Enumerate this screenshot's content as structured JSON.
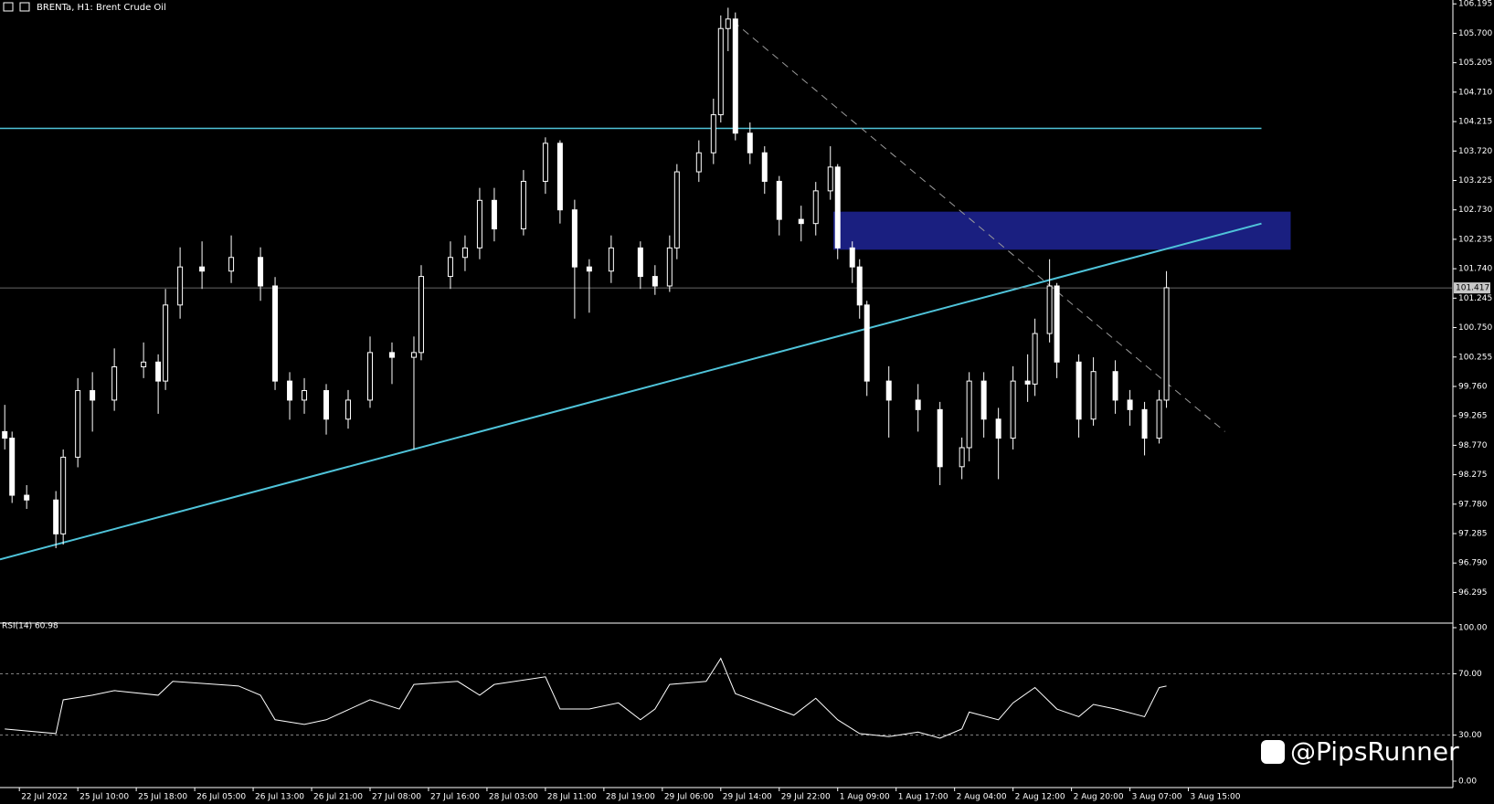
{
  "header": {
    "title": "BRENTa, H1: Brent Crude Oil"
  },
  "watermark": "@PipsRunner",
  "chart_data": [
    {
      "type": "candlestick",
      "color": "#ffffff",
      "background": "#000000",
      "x": [
        0,
        1,
        3,
        7,
        8,
        10,
        12,
        15,
        19,
        21,
        22,
        24,
        27,
        31,
        35,
        37,
        39,
        41,
        44,
        47,
        50,
        53,
        56,
        57,
        61,
        63,
        65,
        67,
        71,
        74,
        76,
        78,
        80,
        83,
        87,
        89,
        91,
        92,
        95,
        97,
        98,
        99,
        100,
        102,
        104,
        106,
        109,
        111,
        113,
        114,
        116,
        117,
        118,
        121,
        125,
        128,
        131,
        132,
        134,
        136,
        138,
        140,
        141,
        143,
        144,
        147,
        149,
        152,
        154,
        156,
        158,
        159
      ],
      "open": [
        99.0,
        98.89,
        97.93,
        97.85,
        97.28,
        98.57,
        99.69,
        99.53,
        100.09,
        100.17,
        99.85,
        101.13,
        101.77,
        101.7,
        101.93,
        101.45,
        99.85,
        99.53,
        99.69,
        99.21,
        99.53,
        100.33,
        100.25,
        100.33,
        101.61,
        101.93,
        102.09,
        102.89,
        102.41,
        103.21,
        103.85,
        102.73,
        101.77,
        101.7,
        102.09,
        101.61,
        101.45,
        102.09,
        103.37,
        103.69,
        104.33,
        105.78,
        105.94,
        104.02,
        103.69,
        103.21,
        102.57,
        102.5,
        103.05,
        103.45,
        102.09,
        101.77,
        101.13,
        99.85,
        99.53,
        99.37,
        98.41,
        98.73,
        99.85,
        99.21,
        98.89,
        99.85,
        99.8,
        100.65,
        101.45,
        100.17,
        99.21,
        100.01,
        99.53,
        99.37,
        98.89,
        99.53
      ],
      "high": [
        99.45,
        99.0,
        98.1,
        98.0,
        98.7,
        99.9,
        100.0,
        100.4,
        100.5,
        100.3,
        101.4,
        102.1,
        102.2,
        102.3,
        102.1,
        101.6,
        100.0,
        99.9,
        99.8,
        99.7,
        100.6,
        100.5,
        100.6,
        101.8,
        102.2,
        102.3,
        103.1,
        103.1,
        103.4,
        103.95,
        103.9,
        102.9,
        101.9,
        102.3,
        102.2,
        101.8,
        102.3,
        103.5,
        103.9,
        104.6,
        106.0,
        106.13,
        106.05,
        104.2,
        103.8,
        103.3,
        102.8,
        103.2,
        103.8,
        103.5,
        102.2,
        101.9,
        101.2,
        100.1,
        99.8,
        99.5,
        98.9,
        100.0,
        100.0,
        99.4,
        100.1,
        100.3,
        100.9,
        101.9,
        101.5,
        100.3,
        100.25,
        100.2,
        99.7,
        99.5,
        99.7,
        101.7
      ],
      "low": [
        98.7,
        97.8,
        97.7,
        97.04,
        97.1,
        98.4,
        99.0,
        99.35,
        99.9,
        99.3,
        99.7,
        100.9,
        101.4,
        101.5,
        101.2,
        99.7,
        99.2,
        99.3,
        98.95,
        99.05,
        99.4,
        99.8,
        98.7,
        100.2,
        101.4,
        101.7,
        101.9,
        102.2,
        102.3,
        103.0,
        102.5,
        100.9,
        101.0,
        101.5,
        101.4,
        101.3,
        101.35,
        101.9,
        103.2,
        103.5,
        104.2,
        105.4,
        103.9,
        103.5,
        103.0,
        102.3,
        102.2,
        102.3,
        102.9,
        101.9,
        101.5,
        100.9,
        99.6,
        98.9,
        99.0,
        98.1,
        98.2,
        98.5,
        98.9,
        98.2,
        98.7,
        99.5,
        99.6,
        100.5,
        99.9,
        98.9,
        99.1,
        99.3,
        99.1,
        98.6,
        98.8,
        99.4
      ],
      "close": [
        98.89,
        97.93,
        97.85,
        97.28,
        98.57,
        99.69,
        99.53,
        100.09,
        100.17,
        99.85,
        101.13,
        101.77,
        101.7,
        101.93,
        101.45,
        99.85,
        99.53,
        99.69,
        99.21,
        99.53,
        100.33,
        100.25,
        100.33,
        101.61,
        101.93,
        102.09,
        102.89,
        102.41,
        103.21,
        103.85,
        102.73,
        101.77,
        101.7,
        102.09,
        101.61,
        101.45,
        102.09,
        103.37,
        103.69,
        104.33,
        105.78,
        105.94,
        104.02,
        103.69,
        103.21,
        102.57,
        102.5,
        103.05,
        103.45,
        102.09,
        101.77,
        101.13,
        99.85,
        99.53,
        99.37,
        98.41,
        98.73,
        99.85,
        99.21,
        98.89,
        99.85,
        99.8,
        100.65,
        101.45,
        100.17,
        99.21,
        100.01,
        99.53,
        99.37,
        98.89,
        99.53,
        101.42
      ],
      "xlim": [
        -0.65,
        198.2
      ],
      "ylim": [
        95.81,
        106.26
      ],
      "yticks": [
        106.195,
        {
          "value": 105.7,
          "label": "105.700"
        },
        105.205,
        {
          "value": 104.71,
          "label": "104.710"
        },
        104.215,
        {
          "value": 103.72,
          "label": "103.720"
        },
        103.225,
        {
          "value": 102.73,
          "label": "102.730"
        },
        102.235,
        {
          "value": 101.74,
          "label": "101.740"
        },
        101.245,
        {
          "value": 100.75,
          "label": "100.750"
        },
        100.255,
        {
          "value": 99.76,
          "label": "99.760"
        },
        99.265,
        {
          "value": 98.77,
          "label": "98.770"
        },
        98.275,
        {
          "value": 97.78,
          "label": "97.780"
        },
        97.285,
        {
          "value": 96.79,
          "label": "96.790"
        },
        96.295
      ],
      "xticks": [
        {
          "value": 2,
          "label": "22 Jul 2022"
        },
        {
          "value": 10,
          "label": "25 Jul 10:00"
        },
        {
          "value": 18,
          "label": "25 Jul 18:00"
        },
        {
          "value": 26,
          "label": "26 Jul 05:00"
        },
        {
          "value": 34,
          "label": "26 Jul 13:00"
        },
        {
          "value": 42,
          "label": "26 Jul 21:00"
        },
        {
          "value": 50,
          "label": "27 Jul 08:00"
        },
        {
          "value": 58,
          "label": "27 Jul 16:00"
        },
        {
          "value": 66,
          "label": "28 Jul 03:00"
        },
        {
          "value": 74,
          "label": "28 Jul 11:00"
        },
        {
          "value": 82,
          "label": "28 Jul 19:00"
        },
        {
          "value": 90,
          "label": "29 Jul 06:00"
        },
        {
          "value": 98,
          "label": "29 Jul 14:00"
        },
        {
          "value": 106,
          "label": "29 Jul 22:00"
        },
        {
          "value": 114,
          "label": "1 Aug 09:00"
        },
        {
          "value": 122,
          "label": "1 Aug 17:00"
        },
        {
          "value": 130,
          "label": "2 Aug 04:00"
        },
        {
          "value": 138,
          "label": "2 Aug 12:00"
        },
        {
          "value": 146,
          "label": "2 Aug 20:00"
        },
        {
          "value": 154,
          "label": "3 Aug 07:00"
        },
        {
          "value": 162,
          "label": "3 Aug 15:00"
        }
      ],
      "current_price": {
        "value": 101.417,
        "label": "101.417"
      },
      "horizontal_line": {
        "value": 104.1,
        "color": "#4fc3d9"
      },
      "trend_line": {
        "x": [
          -0.65,
          172
        ],
        "y": [
          96.85,
          102.5
        ],
        "color": "#4fc3d9"
      },
      "dashed_line": {
        "x": [
          99.7,
          167
        ],
        "y": [
          105.9,
          99.0
        ],
        "color": "#9a9a9a"
      },
      "zone": {
        "x": [
          113.4,
          176
        ],
        "y": [
          102.06,
          102.7
        ],
        "color": "#1a1f80"
      }
    },
    {
      "type": "line",
      "title": "RSI(14) 60.98",
      "color": "#ffffff",
      "x": [
        0,
        7,
        8,
        12,
        15,
        21,
        23,
        32,
        35,
        37,
        41,
        44,
        50,
        54,
        56,
        62,
        65,
        67,
        74,
        76,
        80,
        84,
        87,
        89,
        91,
        96,
        98,
        100,
        104,
        108,
        111,
        114,
        117,
        121,
        125,
        128,
        131,
        132,
        136,
        138,
        141,
        144,
        147,
        149,
        152,
        156,
        158,
        159
      ],
      "values": [
        34,
        31,
        53,
        56,
        59,
        56,
        65,
        62,
        56,
        40,
        37,
        40,
        53,
        47,
        63,
        65,
        56,
        63,
        68,
        47,
        47,
        51,
        40,
        47,
        63,
        65,
        80,
        57,
        50,
        43,
        54,
        40,
        31,
        29,
        32,
        28,
        34,
        45,
        40,
        51,
        61,
        47,
        42,
        50,
        47,
        42,
        61,
        62
      ],
      "ylim": [
        0,
        100
      ],
      "yticks": [
        {
          "value": 100,
          "label": "100.00"
        },
        {
          "value": 70,
          "label": "70.00"
        },
        {
          "value": 30,
          "label": "30.00"
        },
        {
          "value": 0,
          "label": "0.00"
        }
      ]
    }
  ]
}
